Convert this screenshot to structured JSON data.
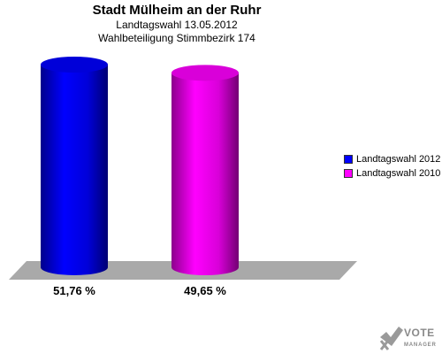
{
  "header": {
    "title": "Stadt Mülheim an der Ruhr",
    "subtitle1": "Landtagswahl 13.05.2012",
    "subtitle2": "Wahlbeteiligung Stimmbezirk 174"
  },
  "chart_data": {
    "type": "bar",
    "categories": [
      "Landtagswahl 2012",
      "Landtagswahl 2010"
    ],
    "values": [
      51.76,
      49.65
    ],
    "value_labels": [
      "51,76 %",
      "49,65 %"
    ],
    "colors": [
      "#0000ff",
      "#ff00ff"
    ],
    "ylim": [
      0,
      51.76
    ],
    "legend_position": "right",
    "grid": false
  },
  "legend": {
    "items": [
      {
        "label": "Landtagswahl 2012",
        "color": "#0000ff"
      },
      {
        "label": "Landtagswahl 2010",
        "color": "#ff00ff"
      }
    ]
  },
  "logo": {
    "line1": "VOTE",
    "line2": "MANAGER",
    "icon": "checkmark-x-icon"
  }
}
